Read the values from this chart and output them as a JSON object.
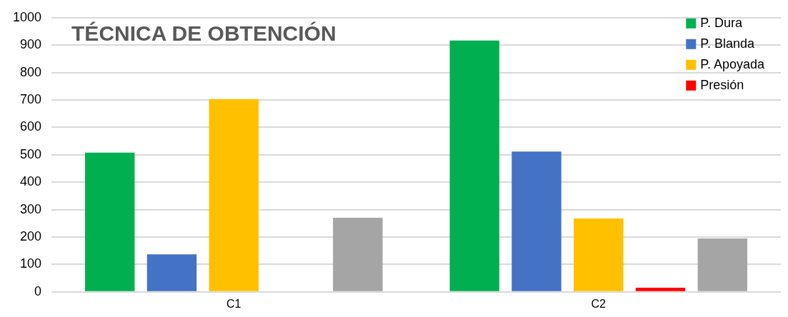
{
  "chart_data": {
    "type": "bar",
    "title": "TÉCNICA DE OBTENCIÓN",
    "categories": [
      "C1",
      "C2"
    ],
    "series": [
      {
        "name": "P. Dura",
        "color": "#00b050",
        "values": [
          508,
          917
        ]
      },
      {
        "name": "P. Blanda",
        "color": "#4472c4",
        "values": [
          137,
          512
        ]
      },
      {
        "name": "P. Apoyada",
        "color": "#ffc000",
        "values": [
          703,
          268
        ]
      },
      {
        "name": "Presión",
        "color": "#ff0000",
        "values": [
          null,
          15
        ]
      },
      {
        "color": "#a5a5a5",
        "values": [
          270,
          195
        ]
      }
    ],
    "ylim": [
      0,
      1000
    ],
    "yticks": [
      0,
      100,
      200,
      300,
      400,
      500,
      600,
      700,
      800,
      900,
      1000
    ],
    "grid": "y",
    "legend": "top right"
  }
}
